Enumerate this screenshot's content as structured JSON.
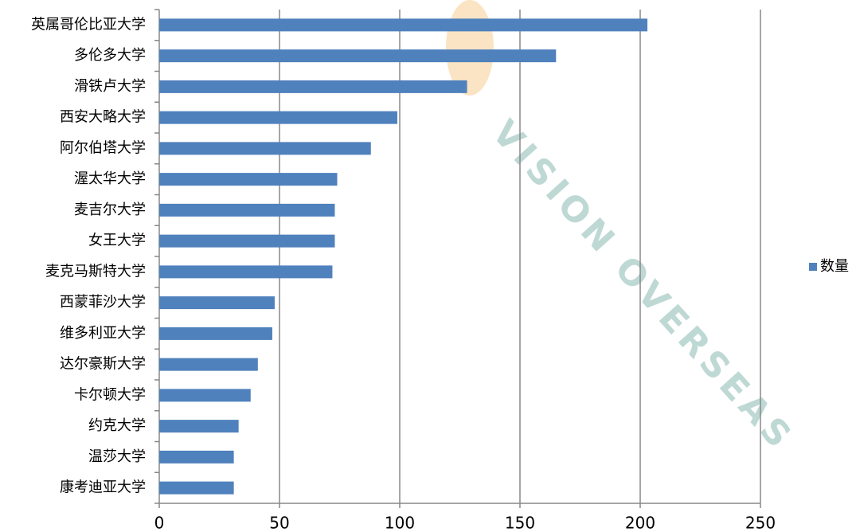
{
  "chart_data": {
    "type": "bar",
    "orientation": "horizontal",
    "categories": [
      "英属哥伦比亚大学",
      "多伦多大学",
      "滑铁卢大学",
      "西安大略大学",
      "阿尔伯塔大学",
      "渥太华大学",
      "麦吉尔大学",
      "女王大学",
      "麦克马斯特大学",
      "西蒙菲沙大学",
      "维多利亚大学",
      "达尔豪斯大学",
      "卡尔顿大学",
      "约克大学",
      "温莎大学",
      "康考迪亚大学"
    ],
    "series": [
      {
        "name": "数量",
        "color": "#4f81bd",
        "values": [
          203,
          165,
          128,
          99,
          88,
          74,
          73,
          73,
          72,
          48,
          47,
          41,
          38,
          33,
          31,
          31
        ]
      }
    ],
    "xlim": [
      0,
      250
    ],
    "xticks": [
      0,
      50,
      100,
      150,
      200,
      250
    ],
    "grid": true,
    "legend": "right",
    "watermark": "VISION OVERSEAS"
  }
}
